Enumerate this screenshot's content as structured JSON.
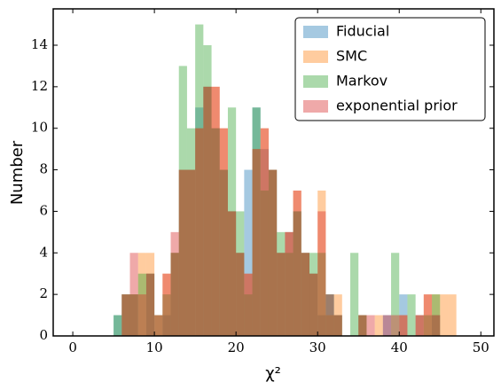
{
  "chart_data": {
    "type": "histogram",
    "xlabel": "χ²",
    "ylabel": "Number",
    "bins": [
      5,
      6,
      7,
      8,
      9,
      10,
      11,
      12,
      13,
      14,
      15,
      16,
      17,
      18,
      19,
      20,
      21,
      22,
      23,
      24,
      25,
      26,
      27,
      28,
      29,
      30,
      31,
      32,
      33,
      34,
      35,
      36,
      37,
      38,
      39,
      40,
      41,
      42,
      43,
      44,
      45,
      46,
      47
    ],
    "alpha": 0.4,
    "legend": "upper right",
    "series": [
      {
        "name": "Fiducial",
        "color": "#1f77b4",
        "values": [
          1,
          2,
          2,
          0,
          3,
          0,
          1,
          4,
          8,
          8,
          11,
          12,
          10,
          8,
          6,
          4,
          8,
          11,
          9,
          8,
          4,
          5,
          6,
          4,
          3,
          1,
          2,
          1,
          0,
          0,
          1,
          0,
          0,
          1,
          0,
          2,
          0,
          1,
          0,
          1,
          0,
          0
        ]
      },
      {
        "name": "SMC",
        "color": "#ff7f0e",
        "values": [
          0,
          2,
          2,
          4,
          4,
          1,
          3,
          4,
          8,
          8,
          10,
          12,
          12,
          10,
          6,
          4,
          3,
          9,
          10,
          8,
          4,
          5,
          7,
          4,
          3,
          7,
          1,
          2,
          0,
          0,
          1,
          0,
          1,
          0,
          0,
          1,
          0,
          1,
          2,
          2,
          2,
          2
        ]
      },
      {
        "name": "Markov",
        "color": "#2ca02c",
        "values": [
          1,
          2,
          2,
          3,
          3,
          1,
          2,
          4,
          13,
          10,
          15,
          14,
          10,
          8,
          11,
          6,
          2,
          11,
          7,
          8,
          5,
          4,
          6,
          4,
          4,
          4,
          2,
          1,
          0,
          4,
          1,
          0,
          0,
          0,
          4,
          0,
          2,
          0,
          1,
          2,
          0,
          0
        ]
      },
      {
        "name": "exponential prior",
        "color": "#d62728",
        "values": [
          0,
          2,
          4,
          2,
          3,
          1,
          3,
          5,
          8,
          8,
          10,
          12,
          12,
          10,
          6,
          4,
          3,
          9,
          10,
          8,
          4,
          5,
          7,
          4,
          3,
          6,
          2,
          1,
          0,
          0,
          1,
          1,
          0,
          1,
          1,
          1,
          0,
          1,
          2,
          1,
          0,
          0
        ]
      }
    ],
    "xlim": [
      -2.4,
      51.6
    ],
    "ylim": [
      0,
      15.75
    ],
    "xticks": [
      0,
      10,
      20,
      30,
      40,
      50
    ],
    "yticks": [
      0,
      2,
      4,
      6,
      8,
      10,
      12,
      14
    ]
  }
}
